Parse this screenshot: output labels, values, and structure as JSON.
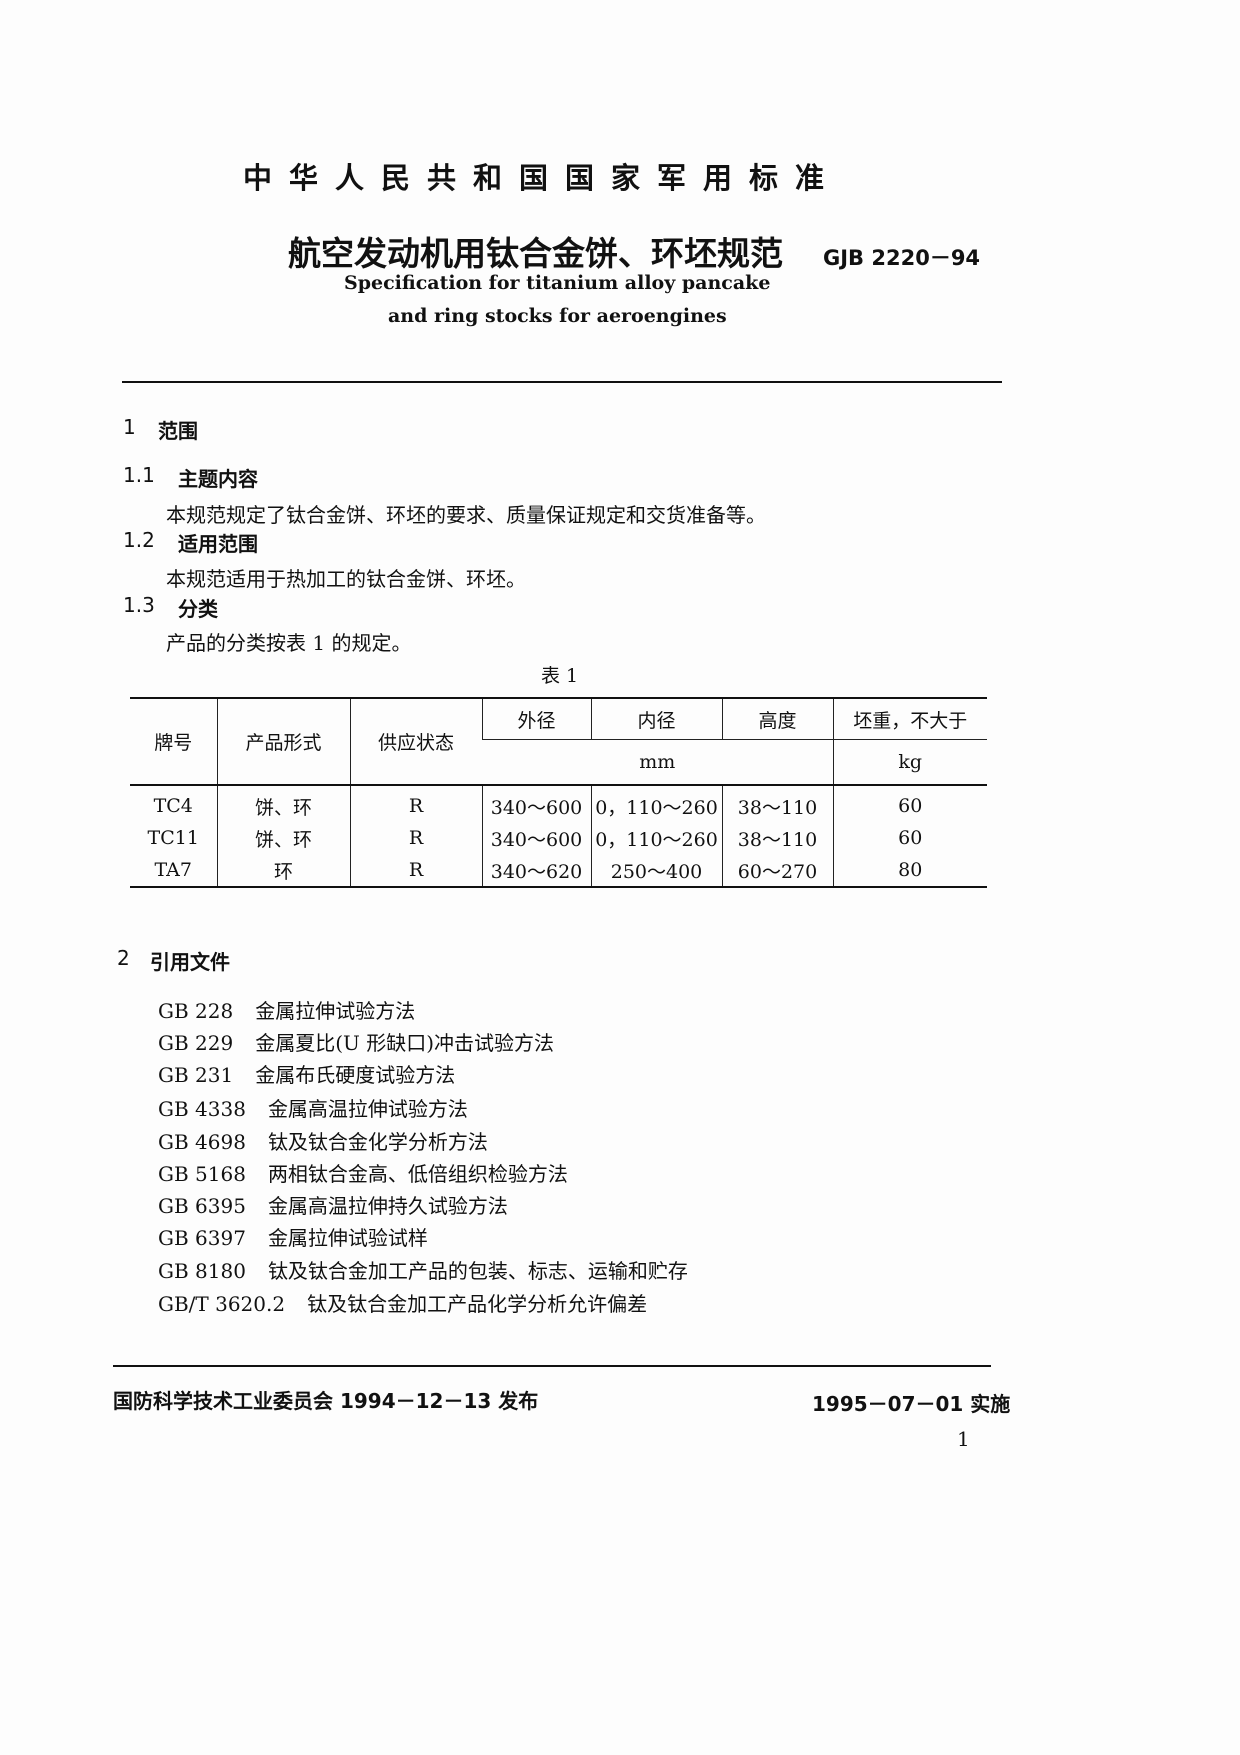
{
  "header": {
    "standard_body": "中华人民共和国国家军用标准",
    "title_cn": "航空发动机用钛合金饼、环坯规范",
    "code": "GJB 2220－94",
    "title_en_line1": "Specification for titanium alloy pancake",
    "title_en_line2": "and ring stocks for aeroengines"
  },
  "sections": {
    "s1": {
      "num": "1",
      "title": "范围"
    },
    "s1_1": {
      "num": "1.1",
      "title": "主题内容",
      "text": "本规范规定了钛合金饼、环坯的要求、质量保证规定和交货准备等。"
    },
    "s1_2": {
      "num": "1.2",
      "title": "适用范围",
      "text": "本规范适用于热加工的钛合金饼、环坯。"
    },
    "s1_3": {
      "num": "1.3",
      "title": "分类",
      "text": "产品的分类按表 1 的规定。"
    },
    "s2": {
      "num": "2",
      "title": "引用文件"
    }
  },
  "table": {
    "caption": "表 1",
    "headers": [
      "牌号",
      "产品形式",
      "供应状态",
      "外径",
      "内径",
      "高度",
      "坯重，不大于"
    ],
    "unit_mm": "mm",
    "unit_kg": "kg",
    "rows": [
      [
        "TC4",
        "饼、环",
        "R",
        "340～600",
        "0，110～260",
        "38～110",
        "60"
      ],
      [
        "TC11",
        "饼、环",
        "R",
        "340～600",
        "0，110～260",
        "38～110",
        "60"
      ],
      [
        "TA7",
        "环",
        "R",
        "340～620",
        "250～400",
        "60～270",
        "80"
      ]
    ]
  },
  "references": [
    {
      "code": "GB 228",
      "title": "金属拉伸试验方法"
    },
    {
      "code": "GB 229",
      "title": "金属夏比(U 形缺口)冲击试验方法"
    },
    {
      "code": "GB 231",
      "title": "金属布氏硬度试验方法"
    },
    {
      "code": "GB 4338",
      "title": "金属高温拉伸试验方法"
    },
    {
      "code": "GB 4698",
      "title": "钛及钛合金化学分析方法"
    },
    {
      "code": "GB 5168",
      "title": "两相钛合金高、低倍组织检验方法"
    },
    {
      "code": "GB 6395",
      "title": "金属高温拉伸持久试验方法"
    },
    {
      "code": "GB 6397",
      "title": "金属拉伸试验试样"
    },
    {
      "code": "GB 8180",
      "title": "钛及钛合金加工产品的包装、标志、运输和贮存"
    },
    {
      "code": "GB/T 3620.2",
      "title": "钛及钛合金加工产品化学分析允许偏差"
    }
  ],
  "footer": {
    "issued": "国防科学技术工业委员会 1994－12－13 发布",
    "effective": "1995－07－01 实施",
    "page_number": "1"
  }
}
